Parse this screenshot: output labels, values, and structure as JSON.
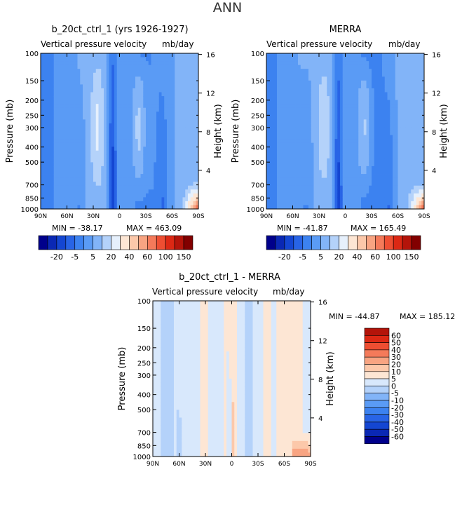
{
  "page": {
    "title": "ANN"
  },
  "chart_data": [
    {
      "type": "heatmap",
      "title": "b_20ct_ctrl_1 (yrs 1926-1927)",
      "subtitle_left": "Vertical pressure velocity",
      "units": "mb/day",
      "xlabel": "",
      "ylabel": "Pressure (mb)",
      "ylabel_right": "Height (km)",
      "x_ticks": [
        "90N",
        "60N",
        "30N",
        "0",
        "30S",
        "60S",
        "90S"
      ],
      "y_ticks": [
        "100",
        "150",
        "200",
        "250",
        "300",
        "400",
        "500",
        "700",
        "850",
        "1000"
      ],
      "y_ticks_right": [
        "16",
        "12",
        "8",
        "4"
      ],
      "y_scale": "log",
      "ylim": [
        1000,
        100
      ],
      "xlim": [
        90,
        -90
      ],
      "min_label": "MIN = -38.17",
      "max_label": "MAX = 463.09",
      "colorbar": {
        "orientation": "horizontal",
        "tick_labels": [
          "-20",
          "-5",
          "5",
          "20",
          "40",
          "60",
          "100",
          "150"
        ]
      }
    },
    {
      "type": "heatmap",
      "title": "MERRA",
      "subtitle_left": "Vertical pressure velocity",
      "units": "mb/day",
      "xlabel": "",
      "ylabel": "Pressure (mb)",
      "ylabel_right": "Height (km)",
      "x_ticks": [
        "90N",
        "60N",
        "30N",
        "0",
        "30S",
        "60S",
        "90S"
      ],
      "y_ticks": [
        "100",
        "150",
        "200",
        "250",
        "300",
        "400",
        "500",
        "700",
        "850",
        "1000"
      ],
      "y_ticks_right": [
        "16",
        "12",
        "8",
        "4"
      ],
      "y_scale": "log",
      "ylim": [
        1000,
        100
      ],
      "xlim": [
        90,
        -90
      ],
      "min_label": "MIN = -41.87",
      "max_label": "MAX = 165.49",
      "colorbar": {
        "orientation": "horizontal",
        "tick_labels": [
          "-20",
          "-5",
          "5",
          "20",
          "40",
          "60",
          "100",
          "150"
        ]
      }
    },
    {
      "type": "heatmap",
      "title": "b_20ct_ctrl_1 - MERRA",
      "subtitle_left": "Vertical pressure velocity",
      "units": "mb/day",
      "xlabel": "",
      "ylabel": "Pressure (mb)",
      "ylabel_right": "Height (km)",
      "x_ticks": [
        "90N",
        "60N",
        "30N",
        "0",
        "30S",
        "60S",
        "90S"
      ],
      "y_ticks": [
        "100",
        "150",
        "200",
        "250",
        "300",
        "400",
        "500",
        "700",
        "850",
        "1000"
      ],
      "y_ticks_right": [
        "16",
        "12",
        "8",
        "4"
      ],
      "y_scale": "log",
      "ylim": [
        1000,
        100
      ],
      "xlim": [
        90,
        -90
      ],
      "min_label": "MIN = -44.87",
      "max_label": "MAX = 185.12",
      "colorbar": {
        "orientation": "vertical",
        "tick_labels": [
          "60",
          "50",
          "40",
          "30",
          "20",
          "10",
          "5",
          "0",
          "-5",
          "-10",
          "-20",
          "-30",
          "-40",
          "-50",
          "-60"
        ]
      }
    }
  ],
  "palettes": {
    "full": [
      "#00008b",
      "#0a28b4",
      "#1446d2",
      "#2864e6",
      "#3c82f0",
      "#5a9bf5",
      "#82b4f8",
      "#b4d2fa",
      "#e6f0fc",
      "#fde6d4",
      "#fcc8aa",
      "#f8a482",
      "#f47a5a",
      "#ee4e32",
      "#dc2814",
      "#b4140a",
      "#820000"
    ],
    "diff": [
      "#00008b",
      "#0a28b4",
      "#1446d2",
      "#2864e6",
      "#3c82f0",
      "#5a9bf5",
      "#82b4f8",
      "#b4d2fa",
      "#d8e8fc",
      "#fde6d4",
      "#fcc8aa",
      "#f8a482",
      "#f47a5a",
      "#ee4e32",
      "#dc2814",
      "#b4140a"
    ]
  }
}
